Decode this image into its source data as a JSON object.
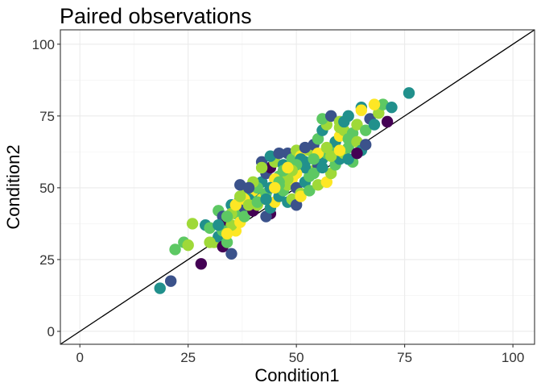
{
  "chart_data": {
    "type": "scatter",
    "title": "Paired observations",
    "xlabel": "Condition1",
    "ylabel": "Condition2",
    "xlim": [
      -4.5,
      105
    ],
    "ylim": [
      -4.5,
      105
    ],
    "xticks": [
      0,
      25,
      50,
      75,
      100
    ],
    "yticks": [
      0,
      25,
      50,
      75,
      100
    ],
    "tick_labels": {
      "x": [
        "0",
        "25",
        "50",
        "75",
        "100"
      ],
      "y": [
        "0",
        "25",
        "50",
        "75",
        "100"
      ]
    },
    "reference_line": {
      "type": "identity",
      "slope": 1,
      "intercept": 0,
      "color": "#000000"
    },
    "grid": true,
    "legend": "none",
    "palette": [
      "#440154",
      "#3b528b",
      "#21908c",
      "#5dc863",
      "#9fd938",
      "#fde725"
    ],
    "points": [
      [
        18.5,
        15,
        2
      ],
      [
        21,
        17.5,
        1
      ],
      [
        22,
        28.5,
        3
      ],
      [
        24,
        31,
        3
      ],
      [
        25,
        30,
        4
      ],
      [
        26,
        37.5,
        4
      ],
      [
        28,
        23.5,
        0
      ],
      [
        29,
        37,
        2
      ],
      [
        30,
        36,
        3
      ],
      [
        31,
        31,
        4
      ],
      [
        32,
        33,
        2
      ],
      [
        33,
        29.5,
        0
      ],
      [
        34,
        31,
        3
      ],
      [
        35,
        27,
        1
      ],
      [
        32,
        42,
        3
      ],
      [
        33,
        40,
        1
      ],
      [
        34,
        38,
        0
      ],
      [
        35,
        44,
        2
      ],
      [
        36,
        41,
        3
      ],
      [
        37,
        46,
        2
      ],
      [
        38,
        43,
        1
      ],
      [
        36,
        35,
        5
      ],
      [
        35,
        37,
        4
      ],
      [
        37,
        38,
        5
      ],
      [
        38,
        40,
        3
      ],
      [
        39,
        45,
        4
      ],
      [
        40,
        47,
        3
      ],
      [
        41,
        49,
        2
      ],
      [
        38,
        48,
        4
      ],
      [
        37,
        51,
        1
      ],
      [
        40,
        42,
        0
      ],
      [
        41,
        44,
        4
      ],
      [
        42,
        46,
        5
      ],
      [
        43,
        48,
        3
      ],
      [
        44,
        41,
        0
      ],
      [
        43,
        40,
        1
      ],
      [
        44,
        43,
        2
      ],
      [
        45,
        45,
        5
      ],
      [
        46,
        47,
        2
      ],
      [
        47,
        49,
        3
      ],
      [
        48,
        51,
        4
      ],
      [
        49,
        53,
        5
      ],
      [
        50,
        50,
        1
      ],
      [
        51,
        48,
        4
      ],
      [
        52,
        52,
        2
      ],
      [
        53,
        54,
        3
      ],
      [
        54,
        56,
        4
      ],
      [
        55,
        58,
        1
      ],
      [
        56,
        60,
        2
      ],
      [
        57,
        62,
        3
      ],
      [
        42,
        52,
        2
      ],
      [
        43,
        55,
        1
      ],
      [
        44,
        57,
        0
      ],
      [
        45,
        59,
        4
      ],
      [
        46,
        54,
        3
      ],
      [
        47,
        58,
        2
      ],
      [
        48,
        62,
        1
      ],
      [
        49,
        60,
        3
      ],
      [
        50,
        63,
        4
      ],
      [
        51,
        61,
        5
      ],
      [
        42,
        59,
        1
      ],
      [
        42,
        57,
        4
      ],
      [
        45,
        53,
        5
      ],
      [
        46,
        51,
        3
      ],
      [
        48,
        45,
        2
      ],
      [
        49,
        46,
        4
      ],
      [
        50,
        44,
        1
      ],
      [
        51,
        47,
        5
      ],
      [
        53,
        49,
        3
      ],
      [
        55,
        51,
        4
      ],
      [
        52,
        59,
        2
      ],
      [
        53,
        63,
        4
      ],
      [
        54,
        65,
        1
      ],
      [
        55,
        67,
        3
      ],
      [
        56,
        70,
        2
      ],
      [
        57,
        72,
        4
      ],
      [
        58,
        63,
        3
      ],
      [
        59,
        66,
        2
      ],
      [
        60,
        68,
        5
      ],
      [
        61,
        70,
        4
      ],
      [
        56,
        74,
        3
      ],
      [
        58,
        75,
        1
      ],
      [
        60,
        73,
        4
      ],
      [
        62,
        75,
        2
      ],
      [
        63,
        69,
        3
      ],
      [
        64,
        72,
        4
      ],
      [
        65,
        78,
        2
      ],
      [
        66,
        70,
        3
      ],
      [
        67,
        74,
        1
      ],
      [
        68,
        72,
        2
      ],
      [
        69,
        76,
        4
      ],
      [
        70,
        79,
        3
      ],
      [
        71,
        73,
        0
      ],
      [
        72,
        78,
        2
      ],
      [
        76,
        83,
        2
      ],
      [
        68,
        79,
        5
      ],
      [
        65,
        77,
        5
      ],
      [
        62,
        67,
        3
      ],
      [
        60,
        71,
        4
      ],
      [
        55,
        62,
        5
      ],
      [
        57,
        64,
        4
      ],
      [
        54,
        60,
        3
      ],
      [
        52,
        57,
        2
      ],
      [
        50,
        55,
        5
      ],
      [
        48,
        53,
        4
      ],
      [
        46,
        52,
        3
      ],
      [
        44,
        50,
        2
      ],
      [
        40,
        49,
        5
      ],
      [
        39,
        46,
        2
      ],
      [
        38,
        46,
        5
      ],
      [
        39,
        44,
        4
      ],
      [
        41,
        45,
        3
      ],
      [
        33,
        35,
        3
      ],
      [
        34,
        34,
        5
      ],
      [
        30,
        31,
        4
      ],
      [
        57,
        52,
        5
      ],
      [
        58,
        55,
        4
      ],
      [
        59,
        58,
        3
      ],
      [
        60,
        60,
        2
      ],
      [
        61,
        62,
        4
      ],
      [
        62,
        64,
        3
      ],
      [
        63,
        59,
        3
      ],
      [
        64,
        66,
        4
      ],
      [
        65,
        63,
        2
      ],
      [
        66,
        65,
        1
      ],
      [
        52,
        64,
        1
      ],
      [
        51,
        60,
        2
      ],
      [
        50,
        58,
        3
      ],
      [
        49,
        56,
        4
      ],
      [
        47,
        56,
        3
      ],
      [
        45,
        50,
        5
      ],
      [
        43,
        46,
        2
      ],
      [
        41,
        50,
        3
      ],
      [
        40,
        52,
        4
      ],
      [
        39,
        50,
        1
      ],
      [
        35,
        41,
        4
      ],
      [
        34,
        40,
        3
      ],
      [
        36,
        44,
        5
      ],
      [
        37,
        47,
        4
      ],
      [
        32,
        37,
        2
      ],
      [
        44,
        61,
        2
      ],
      [
        46,
        62,
        1
      ],
      [
        48,
        57,
        5
      ],
      [
        54,
        55,
        3
      ],
      [
        56,
        57,
        2
      ],
      [
        58,
        61,
        4
      ],
      [
        60,
        63,
        5
      ],
      [
        62,
        60,
        2
      ],
      [
        64,
        62,
        0
      ],
      [
        61,
        73,
        2
      ]
    ]
  }
}
